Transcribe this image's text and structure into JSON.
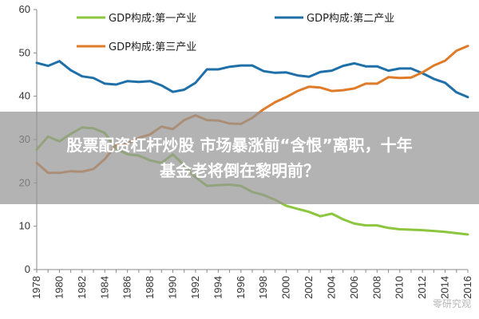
{
  "chart_data": {
    "type": "line",
    "ylim": [
      0,
      60
    ],
    "yticks": [
      0,
      10,
      20,
      30,
      40,
      50,
      60
    ],
    "xlim": [
      1978,
      2016
    ],
    "xticks": [
      1978,
      1980,
      1982,
      1984,
      1986,
      1988,
      1990,
      1992,
      1994,
      1996,
      1998,
      2000,
      2002,
      2004,
      2006,
      2008,
      2010,
      2012,
      2014,
      2016
    ],
    "grid": false,
    "legend_position": "top",
    "series": [
      {
        "name": "GDP构成:第一产业",
        "color": "#8CC63F",
        "x": [
          1978,
          1979,
          1980,
          1981,
          1982,
          1983,
          1984,
          1985,
          1986,
          1987,
          1988,
          1989,
          1990,
          1991,
          1992,
          1993,
          1994,
          1995,
          1996,
          1997,
          1998,
          1999,
          2000,
          2001,
          2002,
          2003,
          2004,
          2005,
          2006,
          2007,
          2008,
          2009,
          2010,
          2011,
          2012,
          2013,
          2014,
          2015,
          2016
        ],
        "y": [
          27.7,
          30.7,
          29.6,
          31.3,
          32.8,
          32.6,
          31.5,
          27.9,
          26.6,
          26.3,
          25.2,
          24.6,
          26.6,
          24.0,
          21.3,
          19.3,
          19.5,
          19.6,
          19.3,
          17.9,
          17.2,
          16.1,
          14.7,
          14.0,
          13.3,
          12.3,
          12.9,
          11.6,
          10.6,
          10.2,
          10.2,
          9.6,
          9.3,
          9.2,
          9.1,
          8.9,
          8.7,
          8.4,
          8.1
        ]
      },
      {
        "name": "GDP构成:第二产业",
        "color": "#1F6FA8",
        "x": [
          1978,
          1979,
          1980,
          1981,
          1982,
          1983,
          1984,
          1985,
          1986,
          1987,
          1988,
          1989,
          1990,
          1991,
          1992,
          1993,
          1994,
          1995,
          1996,
          1997,
          1998,
          1999,
          2000,
          2001,
          2002,
          2003,
          2004,
          2005,
          2006,
          2007,
          2008,
          2009,
          2010,
          2011,
          2012,
          2013,
          2014,
          2015,
          2016
        ],
        "y": [
          47.7,
          47.0,
          48.1,
          46.0,
          44.6,
          44.2,
          42.9,
          42.7,
          43.5,
          43.3,
          43.5,
          42.5,
          41.0,
          41.5,
          43.1,
          46.2,
          46.2,
          46.8,
          47.1,
          47.1,
          45.8,
          45.4,
          45.5,
          44.8,
          44.5,
          45.6,
          45.9,
          47.0,
          47.6,
          46.9,
          46.9,
          45.9,
          46.4,
          46.4,
          45.3,
          44.0,
          43.1,
          40.9,
          39.8
        ]
      },
      {
        "name": "GDP构成:第三产业",
        "color": "#E07B2A",
        "x": [
          1978,
          1979,
          1980,
          1981,
          1982,
          1983,
          1984,
          1985,
          1986,
          1987,
          1988,
          1989,
          1990,
          1991,
          1992,
          1993,
          1994,
          1995,
          1996,
          1997,
          1998,
          1999,
          2000,
          2001,
          2002,
          2003,
          2004,
          2005,
          2006,
          2007,
          2008,
          2009,
          2010,
          2011,
          2012,
          2013,
          2014,
          2015,
          2016
        ],
        "y": [
          24.6,
          22.3,
          22.3,
          22.7,
          22.6,
          23.2,
          25.5,
          28.7,
          29.1,
          30.4,
          31.2,
          33.0,
          32.4,
          34.5,
          35.6,
          34.5,
          34.4,
          33.7,
          33.6,
          35.0,
          37.0,
          38.6,
          39.8,
          41.2,
          42.2,
          42.0,
          41.2,
          41.4,
          41.8,
          42.9,
          42.9,
          44.4,
          44.2,
          44.3,
          45.5,
          47.1,
          48.2,
          50.5,
          51.6
        ]
      }
    ]
  },
  "banner": {
    "line1": "股票配资杠杆炒股 市场暴涨前“含恨”离职，十年",
    "line2": "基金老将倒在黎明前？"
  },
  "watermark": "零研究观"
}
